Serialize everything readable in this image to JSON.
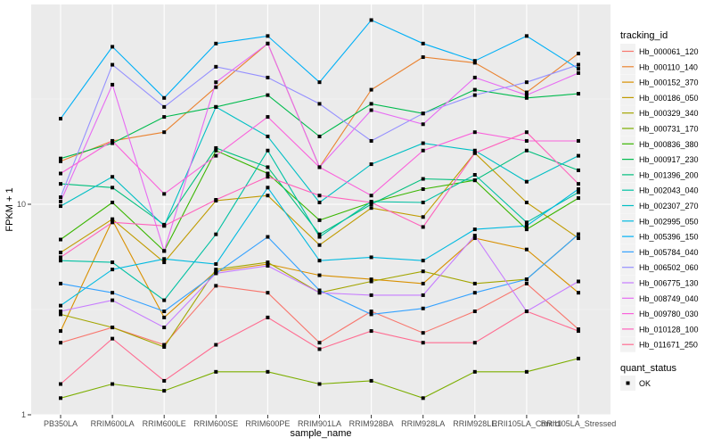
{
  "chart_data": {
    "type": "line",
    "xlabel": "sample_name",
    "ylabel": "FPKM + 1",
    "y_scale": "log10",
    "ylim": [
      1,
      89
    ],
    "y_ticks": [
      {
        "value": 1,
        "label": "1"
      },
      {
        "value": 10,
        "label": "10"
      }
    ],
    "y_minor_gridlines": [
      3.162,
      31.62
    ],
    "grid": true,
    "categories": [
      "PB350LA",
      "RRIM600LA",
      "RRIM600LE",
      "RRIM600SE",
      "RRIM600PE",
      "RRIM901LA",
      "RRIM928BA",
      "RRIM928LA",
      "RRIM928LE",
      "RRII105LA_Control",
      "RRII105LA_Stressed"
    ],
    "legend": {
      "position": "right",
      "color_title": "tracking_id",
      "shape_title": "quant_status",
      "shape_entries": [
        "OK"
      ]
    },
    "series": [
      {
        "name": "Hb_000061_120",
        "color": "#F8766D",
        "values": [
          2.2,
          2.6,
          2.15,
          4.1,
          3.8,
          2.2,
          3.1,
          2.45,
          3.1,
          4.2,
          2.55
        ]
      },
      {
        "name": "Hb_000110_140",
        "color": "#EA8331",
        "values": [
          16,
          20,
          22,
          36,
          58,
          15,
          35,
          50,
          47,
          34,
          52
        ]
      },
      {
        "name": "Hb_000152_370",
        "color": "#D89000",
        "values": [
          2.5,
          8.4,
          2.9,
          4.8,
          5.2,
          4.6,
          4.4,
          4.2,
          6.9,
          6.1,
          3.8
        ]
      },
      {
        "name": "Hb_000186_050",
        "color": "#C09B00",
        "values": [
          5.9,
          8.5,
          5.3,
          10.4,
          11.0,
          6.4,
          9.6,
          8.7,
          17.5,
          10.2,
          6.9
        ]
      },
      {
        "name": "Hb_000329_340",
        "color": "#A3A500",
        "values": [
          3.0,
          2.6,
          2.1,
          4.9,
          5.3,
          3.8,
          4.3,
          4.8,
          4.2,
          4.4,
          7.2
        ]
      },
      {
        "name": "Hb_000731_170",
        "color": "#7CAE00",
        "values": [
          1.2,
          1.4,
          1.3,
          1.6,
          1.6,
          1.4,
          1.45,
          1.2,
          1.6,
          1.6,
          1.85
        ]
      },
      {
        "name": "Hb_000836_380",
        "color": "#39B600",
        "values": [
          6.8,
          10.2,
          6.0,
          18.0,
          14.0,
          8.4,
          10.2,
          11.8,
          13.0,
          7.6,
          10.7
        ]
      },
      {
        "name": "Hb_000917_230",
        "color": "#00BB4E",
        "values": [
          16.5,
          19.5,
          26,
          29,
          33,
          21,
          30,
          27,
          35,
          32,
          33.5
        ]
      },
      {
        "name": "Hb_001396_200",
        "color": "#00BF7D",
        "values": [
          12.5,
          12,
          8.0,
          18.5,
          15,
          7.2,
          10.0,
          13.2,
          13.0,
          18,
          14.5
        ]
      },
      {
        "name": "Hb_002043_040",
        "color": "#00C1A3",
        "values": [
          5.4,
          5.3,
          3.5,
          7.2,
          18.0,
          7.0,
          10.3,
          10.2,
          13.8,
          8.2,
          11.4
        ]
      },
      {
        "name": "Hb_002307_270",
        "color": "#00BFC4",
        "values": [
          9.8,
          13.5,
          7.9,
          29,
          21,
          10.2,
          15.5,
          19.5,
          18.0,
          12.8,
          17.0
        ]
      },
      {
        "name": "Hb_002995_050",
        "color": "#00BAE0",
        "values": [
          3.3,
          4.9,
          5.5,
          5.2,
          12.0,
          5.4,
          5.6,
          5.4,
          7.6,
          7.9,
          11.8
        ]
      },
      {
        "name": "Hb_005396_150",
        "color": "#00B0F6",
        "values": [
          25.5,
          56,
          32,
          58,
          63,
          38,
          75,
          58,
          48,
          63,
          44
        ]
      },
      {
        "name": "Hb_005784_040",
        "color": "#35A2FF",
        "values": [
          4.2,
          3.8,
          3.1,
          4.7,
          7.0,
          3.9,
          3.0,
          3.2,
          3.8,
          4.4,
          7.2
        ]
      },
      {
        "name": "Hb_006502_060",
        "color": "#9590FF",
        "values": [
          10.8,
          46,
          29,
          45,
          40,
          30,
          20,
          27,
          33,
          38,
          46
        ]
      },
      {
        "name": "Hb_006775_130",
        "color": "#C77CFF",
        "values": [
          3.1,
          3.5,
          2.6,
          4.7,
          5.1,
          3.8,
          3.7,
          3.7,
          7.1,
          3.1,
          4.3
        ]
      },
      {
        "name": "Hb_008749_040",
        "color": "#E76BF3",
        "values": [
          10.3,
          37,
          6.0,
          38,
          58,
          15,
          28,
          24,
          40,
          33,
          42
        ]
      },
      {
        "name": "Hb_009780_030",
        "color": "#FA62DB",
        "values": [
          14,
          20,
          11.2,
          17,
          26,
          15,
          11,
          18,
          22,
          20,
          20
        ]
      },
      {
        "name": "Hb_010128_100",
        "color": "#FF62BC",
        "values": [
          5.6,
          8.2,
          7.9,
          10.5,
          13.5,
          11.0,
          10.2,
          7.8,
          17.5,
          22,
          12.5
        ]
      },
      {
        "name": "Hb_011671_250",
        "color": "#FF6C91",
        "values": [
          1.4,
          2.3,
          1.45,
          2.15,
          2.9,
          2.05,
          2.5,
          2.2,
          2.2,
          3.1,
          2.5
        ]
      }
    ]
  }
}
